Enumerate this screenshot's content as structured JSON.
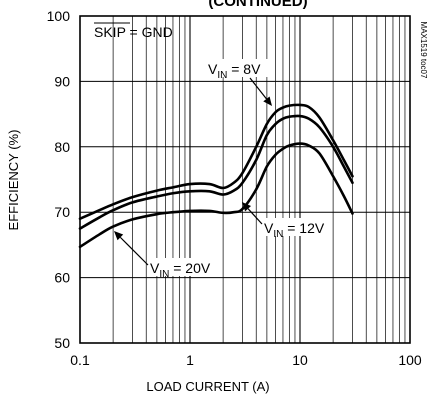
{
  "chart_data": {
    "type": "line",
    "title": "(CONTINUED)",
    "xlabel": "LOAD CURRENT (A)",
    "ylabel": "EFFICIENCY (%)",
    "xscale": "log",
    "xlim": [
      0.1,
      100
    ],
    "ylim": [
      50,
      100
    ],
    "grid": true,
    "xticks": [
      "0.1",
      "1",
      "10",
      "100"
    ],
    "yticks": [
      "50",
      "60",
      "70",
      "80",
      "90",
      "100"
    ],
    "side_label": "MAX1519 toc07",
    "condition_label": {
      "overbar": "SKIP",
      "rest": " = GND"
    },
    "series": [
      {
        "label_main": "V",
        "label_sub": "IN",
        "label_rest": " = 8V",
        "x": [
          0.1,
          0.15,
          0.2,
          0.3,
          0.5,
          0.7,
          1,
          1.5,
          2,
          2.5,
          3,
          4,
          5,
          6,
          7,
          8,
          10,
          12,
          15,
          20,
          25,
          30
        ],
        "y": [
          69.0,
          70.3,
          71.2,
          72.3,
          73.3,
          73.8,
          74.3,
          74.3,
          73.7,
          74.5,
          76.0,
          80.0,
          83.5,
          85.3,
          86.0,
          86.3,
          86.4,
          86.1,
          84.5,
          81.0,
          78.0,
          75.5
        ]
      },
      {
        "label_main": "V",
        "label_sub": "IN",
        "label_rest": " = 12V",
        "x": [
          0.1,
          0.15,
          0.2,
          0.3,
          0.5,
          0.7,
          1,
          1.5,
          2,
          2.5,
          3,
          4,
          5,
          6,
          7,
          8,
          10,
          12,
          15,
          20,
          25,
          30
        ],
        "y": [
          67.5,
          69.2,
          70.3,
          71.5,
          72.4,
          72.9,
          73.2,
          73.2,
          72.7,
          73.3,
          74.5,
          78.0,
          81.8,
          83.5,
          84.3,
          84.6,
          84.7,
          84.3,
          83.0,
          80.0,
          77.0,
          74.5
        ]
      },
      {
        "label_main": "V",
        "label_sub": "IN",
        "label_rest": " = 20V",
        "x": [
          0.1,
          0.15,
          0.2,
          0.3,
          0.5,
          0.7,
          1,
          1.5,
          2,
          2.5,
          3,
          4,
          5,
          6,
          7,
          8,
          10,
          12,
          15,
          20,
          25,
          30
        ],
        "y": [
          64.7,
          66.6,
          67.8,
          68.9,
          69.7,
          70.0,
          70.2,
          70.2,
          69.9,
          70.0,
          70.5,
          73.5,
          77.0,
          78.8,
          79.7,
          80.2,
          80.5,
          80.2,
          79.0,
          75.5,
          72.5,
          69.8
        ]
      }
    ]
  }
}
